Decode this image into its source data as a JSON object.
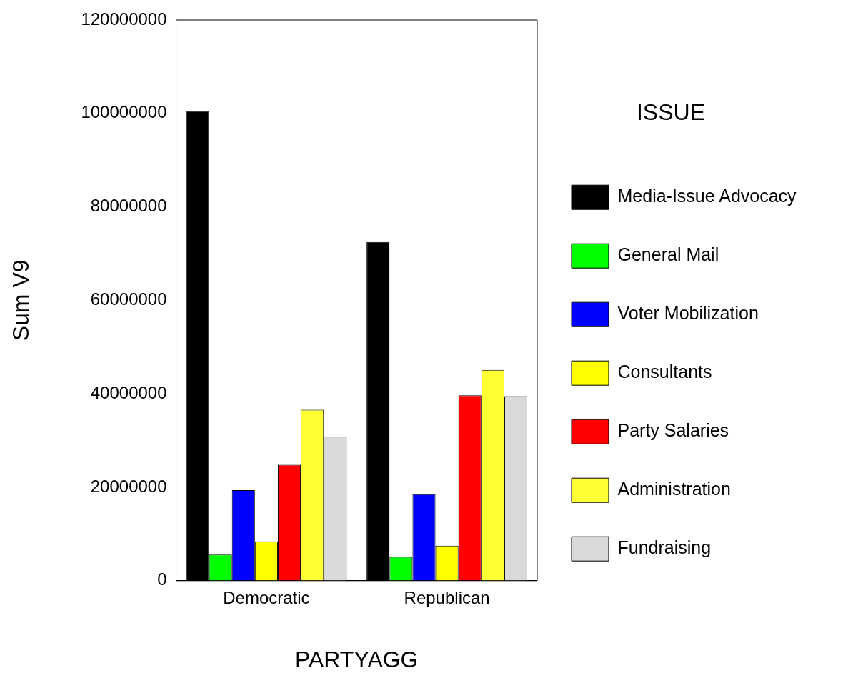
{
  "chart_data": {
    "type": "bar",
    "xlabel": "PARTYAGG",
    "ylabel": "Sum V9",
    "legend_title": "ISSUE",
    "categories": [
      "Democratic",
      "Republican"
    ],
    "series": [
      {
        "name": "Media-Issue Advocacy",
        "color": "#000000",
        "values": [
          100500000,
          72500000
        ]
      },
      {
        "name": "General Mail",
        "color": "#00ff00",
        "values": [
          5600000,
          5100000
        ]
      },
      {
        "name": "Voter Mobilization",
        "color": "#0000ff",
        "values": [
          19400000,
          18500000
        ]
      },
      {
        "name": "Consultants",
        "color": "#ffff00",
        "values": [
          8400000,
          7500000
        ]
      },
      {
        "name": "Party Salaries",
        "color": "#ff0000",
        "values": [
          24800000,
          39700000
        ]
      },
      {
        "name": "Administration",
        "color": "#ffff33",
        "values": [
          36600000,
          45100000
        ]
      },
      {
        "name": "Fundraising",
        "color": "#d9d9d9",
        "values": [
          30800000,
          39500000
        ]
      }
    ],
    "ylim": [
      0,
      120000000
    ],
    "yticks": [
      0,
      20000000,
      40000000,
      60000000,
      80000000,
      100000000,
      120000000
    ],
    "grid": false,
    "legend": "right"
  }
}
